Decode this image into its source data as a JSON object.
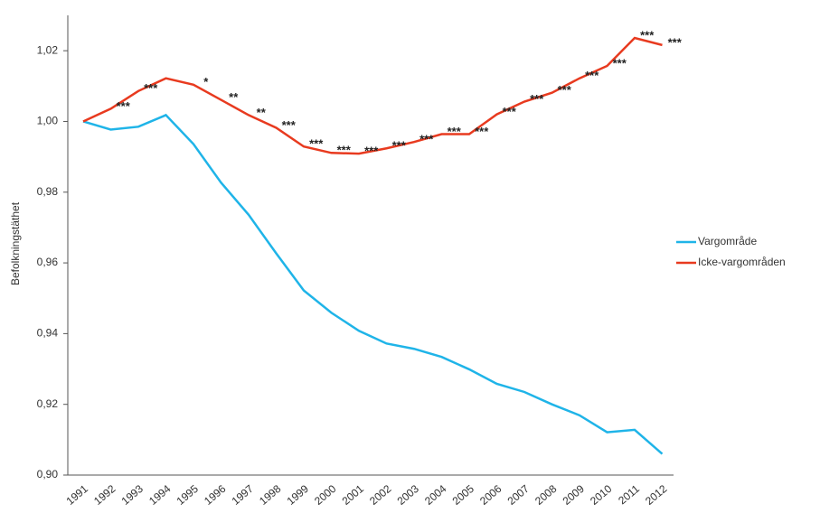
{
  "chart_data": {
    "type": "line",
    "y_label": "Befolkningstäthet",
    "categories": [
      "1991",
      "1992",
      "1993",
      "1994",
      "1995",
      "1996",
      "1997",
      "1998",
      "1999",
      "2000",
      "2001",
      "2002",
      "2003",
      "2004",
      "2005",
      "2006",
      "2007",
      "2008",
      "2009",
      "2010",
      "2011",
      "2012"
    ],
    "series": [
      {
        "name": "Vargområde",
        "color": "#1fb4e8",
        "values": [
          1.0,
          0.9977,
          0.9985,
          1.0018,
          0.9936,
          0.9827,
          0.9736,
          0.9627,
          0.9522,
          0.9459,
          0.9408,
          0.9372,
          0.9357,
          0.9334,
          0.9299,
          0.9258,
          0.9235,
          0.92,
          0.9169,
          0.9121,
          0.9128,
          0.906
        ]
      },
      {
        "name": "Icke-vargområden",
        "color": "#e83a1f",
        "values": [
          1.0,
          1.0036,
          1.0086,
          1.0122,
          1.0104,
          1.0061,
          1.0018,
          0.9982,
          0.9929,
          0.9911,
          0.9909,
          0.9924,
          0.9942,
          0.9964,
          0.9964,
          1.002,
          1.0056,
          1.0081,
          1.0122,
          1.0157,
          1.0236,
          1.0216
        ]
      }
    ],
    "annotations": [
      {
        "category": "1992",
        "text": "***"
      },
      {
        "category": "1993",
        "text": "***"
      },
      {
        "category": "1995",
        "text": "*"
      },
      {
        "category": "1996",
        "text": "**"
      },
      {
        "category": "1997",
        "text": "**"
      },
      {
        "category": "1998",
        "text": "***"
      },
      {
        "category": "1999",
        "text": "***"
      },
      {
        "category": "2000",
        "text": "***"
      },
      {
        "category": "2001",
        "text": "***"
      },
      {
        "category": "2002",
        "text": "***"
      },
      {
        "category": "2003",
        "text": "***"
      },
      {
        "category": "2004",
        "text": "***"
      },
      {
        "category": "2005",
        "text": "***"
      },
      {
        "category": "2006",
        "text": "***"
      },
      {
        "category": "2007",
        "text": "***"
      },
      {
        "category": "2008",
        "text": "***"
      },
      {
        "category": "2009",
        "text": "***"
      },
      {
        "category": "2010",
        "text": "***"
      },
      {
        "category": "2011",
        "text": "***"
      },
      {
        "category": "2012",
        "text": "***"
      }
    ],
    "ylim": [
      0.9,
      1.03
    ],
    "yticks": [
      {
        "value": 0.9,
        "label": "0,90"
      },
      {
        "value": 0.92,
        "label": "0,92"
      },
      {
        "value": 0.94,
        "label": "0,94"
      },
      {
        "value": 0.96,
        "label": "0,96"
      },
      {
        "value": 0.98,
        "label": "0,98"
      },
      {
        "value": 1.0,
        "label": "1,00"
      },
      {
        "value": 1.02,
        "label": "1,02"
      }
    ],
    "grid": false,
    "legend": "right"
  }
}
